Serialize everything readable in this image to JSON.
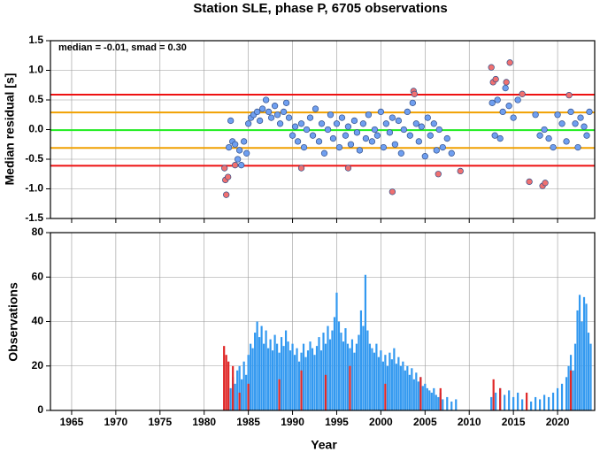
{
  "chart_data": [
    {
      "type": "scatter",
      "title": "Station SLE, phase P, 6705 observations",
      "ylabel": "Median residual [s]",
      "annotation": "median = -0.01, smad = 0.30",
      "xlim": [
        1962.6,
        2024.2
      ],
      "xticks": [
        1965,
        1970,
        1975,
        1980,
        1985,
        1990,
        1995,
        2000,
        2005,
        2010,
        2015,
        2020
      ],
      "ylim": [
        -1.5,
        1.5
      ],
      "yticks": [
        1.5,
        {
          "value": 1.0,
          "label": "1.0"
        },
        0.5,
        {
          "value": 0.0,
          "label": "0.0"
        },
        -0.5,
        {
          "value": -1.0,
          "label": "-1.0"
        },
        -1.5
      ],
      "grid": true,
      "reference_lines": [
        {
          "value": 0.59,
          "color": "#ee1111"
        },
        {
          "value": 0.29,
          "color": "#f0a000"
        },
        {
          "value": -0.01,
          "color": "#22ee22"
        },
        {
          "value": -0.31,
          "color": "#f0a000"
        },
        {
          "value": -0.61,
          "color": "#ee1111"
        }
      ],
      "series": [
        {
          "color": "#6f9ff0",
          "x": [
            1982.8,
            1983.0,
            1983.2,
            1983.5,
            1983.8,
            1984.0,
            1984.2,
            1984.5,
            1984.8,
            1985.0,
            1985.3,
            1985.6,
            1986.0,
            1986.3,
            1986.6,
            1987.0,
            1987.3,
            1987.6,
            1988.0,
            1988.3,
            1988.6,
            1989.0,
            1989.3,
            1989.6,
            1990.0,
            1990.3,
            1990.6,
            1991.0,
            1991.3,
            1991.6,
            1992.0,
            1992.3,
            1992.6,
            1993.0,
            1993.3,
            1993.6,
            1994.0,
            1994.3,
            1994.6,
            1995.0,
            1995.3,
            1995.6,
            1996.0,
            1996.3,
            1996.6,
            1997.0,
            1997.3,
            1997.6,
            1998.0,
            1998.3,
            1998.6,
            1999.0,
            1999.3,
            1999.6,
            2000.0,
            2000.3,
            2000.6,
            2001.0,
            2001.3,
            2001.6,
            2002.0,
            2002.3,
            2002.6,
            2003.0,
            2003.3,
            2003.6,
            2004.0,
            2004.3,
            2004.6,
            2005.0,
            2005.3,
            2005.6,
            2006.0,
            2006.3,
            2006.6,
            2007.0,
            2007.5,
            2008.0,
            2012.6,
            2012.9,
            2013.2,
            2013.5,
            2013.8,
            2014.1,
            2014.5,
            2015.0,
            2015.5,
            2017.5,
            2018.0,
            2018.5,
            2019.0,
            2019.5,
            2020.0,
            2020.5,
            2021.0,
            2021.5,
            2022.0,
            2022.3,
            2022.6,
            2023.0,
            2023.3,
            2023.6
          ],
          "values": [
            -0.3,
            0.15,
            -0.2,
            -0.25,
            -0.5,
            -0.35,
            -0.6,
            -0.2,
            -0.4,
            0.1,
            0.2,
            0.25,
            0.3,
            0.15,
            0.35,
            0.5,
            0.3,
            0.2,
            0.4,
            0.25,
            0.1,
            0.3,
            0.45,
            0.2,
            -0.1,
            0.05,
            -0.2,
            0.1,
            -0.3,
            0.0,
            0.2,
            -0.1,
            0.35,
            -0.2,
            0.1,
            -0.4,
            0.0,
            0.25,
            -0.15,
            0.1,
            -0.3,
            0.2,
            -0.1,
            0.05,
            -0.25,
            0.15,
            -0.05,
            -0.35,
            0.1,
            -0.15,
            0.25,
            -0.2,
            0.0,
            -0.1,
            0.3,
            -0.3,
            0.1,
            -0.05,
            0.2,
            -0.25,
            0.15,
            -0.4,
            0.0,
            0.3,
            -0.1,
            0.45,
            0.1,
            -0.2,
            0.05,
            -0.45,
            0.2,
            -0.1,
            0.1,
            -0.35,
            0.0,
            -0.3,
            -0.15,
            -0.4,
            0.45,
            -0.1,
            0.5,
            -0.15,
            0.3,
            0.7,
            0.4,
            0.2,
            0.5,
            0.25,
            -0.1,
            0.0,
            -0.15,
            -0.3,
            0.25,
            0.1,
            -0.2,
            0.3,
            0.1,
            -0.3,
            0.2,
            0.05,
            -0.1,
            0.3
          ]
        },
        {
          "color": "#f07070",
          "x": [
            1982.3,
            1982.4,
            1982.5,
            1982.7,
            1983.5,
            1991.0,
            1996.3,
            2001.3,
            2003.7,
            2003.8,
            2006.5,
            2009.0,
            2012.5,
            2012.7,
            2013.0,
            2014.2,
            2014.6,
            2016.0,
            2016.8,
            2018.3,
            2018.6,
            2021.3
          ],
          "values": [
            -0.65,
            -0.85,
            -1.1,
            -0.8,
            -0.6,
            -0.65,
            -0.65,
            -1.05,
            0.65,
            0.6,
            -0.75,
            -0.7,
            1.05,
            0.8,
            0.85,
            0.8,
            1.13,
            0.6,
            -0.88,
            -0.95,
            -0.9,
            0.58
          ]
        }
      ]
    },
    {
      "type": "bar",
      "ylabel": "Observations",
      "xlabel": "Year",
      "xlim": [
        1962.6,
        2024.2
      ],
      "xticks": [
        1965,
        1970,
        1975,
        1980,
        1985,
        1990,
        1995,
        2000,
        2005,
        2010,
        2015,
        2020
      ],
      "ylim": [
        0,
        80
      ],
      "yticks": [
        0,
        20,
        40,
        60,
        80
      ],
      "grid": true,
      "series": [
        {
          "color": "#3399f0",
          "x": [
            1983.0,
            1983.25,
            1983.5,
            1983.75,
            1984.0,
            1984.25,
            1984.5,
            1984.75,
            1985.0,
            1985.25,
            1985.5,
            1985.75,
            1986.0,
            1986.25,
            1986.5,
            1986.75,
            1987.0,
            1987.25,
            1987.5,
            1987.75,
            1988.0,
            1988.25,
            1988.5,
            1988.75,
            1989.0,
            1989.25,
            1989.5,
            1989.75,
            1990.0,
            1990.25,
            1990.5,
            1990.75,
            1991.0,
            1991.25,
            1991.5,
            1991.75,
            1992.0,
            1992.25,
            1992.5,
            1992.75,
            1993.0,
            1993.25,
            1993.5,
            1993.75,
            1994.0,
            1994.25,
            1994.5,
            1994.75,
            1995.0,
            1995.25,
            1995.5,
            1995.75,
            1996.0,
            1996.25,
            1996.5,
            1996.75,
            1997.0,
            1997.25,
            1997.5,
            1997.75,
            1998.0,
            1998.25,
            1998.5,
            1998.75,
            1999.0,
            1999.25,
            1999.5,
            1999.75,
            2000.0,
            2000.25,
            2000.5,
            2000.75,
            2001.0,
            2001.25,
            2001.5,
            2001.75,
            2002.0,
            2002.25,
            2002.5,
            2002.75,
            2003.0,
            2003.25,
            2003.5,
            2003.75,
            2004.0,
            2004.25,
            2004.5,
            2004.75,
            2005.0,
            2005.25,
            2005.5,
            2005.75,
            2006.0,
            2006.25,
            2006.5,
            2006.75,
            2007.0,
            2007.5,
            2008.0,
            2008.5,
            2012.5,
            2013.0,
            2013.5,
            2014.0,
            2014.5,
            2015.0,
            2015.5,
            2016.0,
            2017.0,
            2017.5,
            2018.0,
            2018.5,
            2019.0,
            2019.5,
            2020.0,
            2020.5,
            2021.0,
            2021.25,
            2021.5,
            2021.75,
            2022.0,
            2022.25,
            2022.5,
            2022.75,
            2023.0,
            2023.25,
            2023.5,
            2023.75
          ],
          "values": [
            10,
            15,
            12,
            18,
            20,
            14,
            22,
            16,
            25,
            30,
            28,
            35,
            40,
            33,
            38,
            30,
            36,
            28,
            32,
            27,
            34,
            30,
            26,
            33,
            29,
            36,
            31,
            27,
            30,
            25,
            28,
            22,
            26,
            30,
            24,
            27,
            31,
            28,
            25,
            29,
            33,
            27,
            35,
            30,
            38,
            32,
            36,
            42,
            53,
            40,
            35,
            31,
            37,
            30,
            28,
            32,
            26,
            30,
            34,
            45,
            38,
            61,
            36,
            30,
            28,
            26,
            30,
            24,
            27,
            22,
            25,
            20,
            26,
            23,
            28,
            21,
            24,
            20,
            22,
            18,
            20,
            16,
            19,
            14,
            17,
            13,
            15,
            11,
            12,
            10,
            9,
            8,
            10,
            7,
            6,
            8,
            5,
            6,
            4,
            5,
            6,
            8,
            10,
            7,
            9,
            6,
            8,
            5,
            4,
            6,
            5,
            7,
            6,
            8,
            10,
            12,
            15,
            20,
            25,
            18,
            30,
            45,
            52,
            40,
            51,
            48,
            35,
            30
          ]
        },
        {
          "color": "#e02828",
          "x": [
            1982.25,
            1982.5,
            1982.75,
            1983.25,
            1984.0,
            1985.0,
            1988.5,
            1991.0,
            1993.75,
            1996.5,
            2000.5,
            2004.5,
            2006.75,
            2012.75,
            2013.5,
            2016.5,
            2021.5
          ],
          "values": [
            29,
            25,
            22,
            20,
            8,
            12,
            14,
            18,
            16,
            20,
            12,
            15,
            10,
            14,
            10,
            8,
            18
          ]
        }
      ]
    }
  ]
}
